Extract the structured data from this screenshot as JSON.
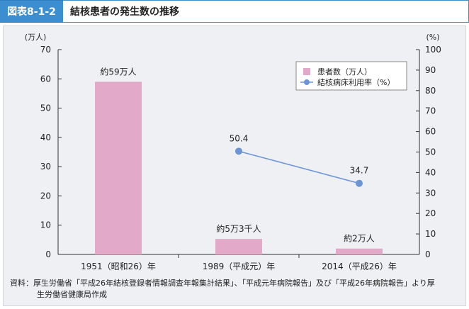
{
  "header": {
    "figure_label": "図表8-1-2",
    "title": "結核患者の発生数の推移"
  },
  "source_note": {
    "line1": "資料：厚生労働省「平成26年結核登録者情報調査年報集計結果」、「平成元年病院報告」及び「平成26年病院報告」より厚",
    "line2": "生労働省健康局作成"
  },
  "chart_data": {
    "type": "bar",
    "categories": [
      "1951（昭和26）年",
      "1989（平成元）年",
      "2014（平成26）年"
    ],
    "left_unit": "(万人)",
    "right_unit": "(%)",
    "ylim": [
      0,
      70
    ],
    "y2lim": [
      0,
      100
    ],
    "left_ticks": [
      0,
      10,
      20,
      30,
      40,
      50,
      60,
      70
    ],
    "right_ticks": [
      0,
      10,
      20,
      30,
      40,
      50,
      60,
      70,
      80,
      90,
      100
    ],
    "series": [
      {
        "name": "患者数（万人）",
        "type": "bar",
        "axis": "left",
        "color": "#e3a9c8",
        "values": [
          59,
          5.3,
          2
        ],
        "labels": [
          "約59万人",
          "約5万3千人",
          "約2万人"
        ]
      },
      {
        "name": "結核病床利用率（%）",
        "type": "line",
        "axis": "right",
        "color": "#6d95d6",
        "values": [
          null,
          50.4,
          34.7
        ],
        "labels": [
          "",
          "50.4",
          "34.7"
        ]
      }
    ],
    "legend_position": "top-right",
    "grid": false
  }
}
